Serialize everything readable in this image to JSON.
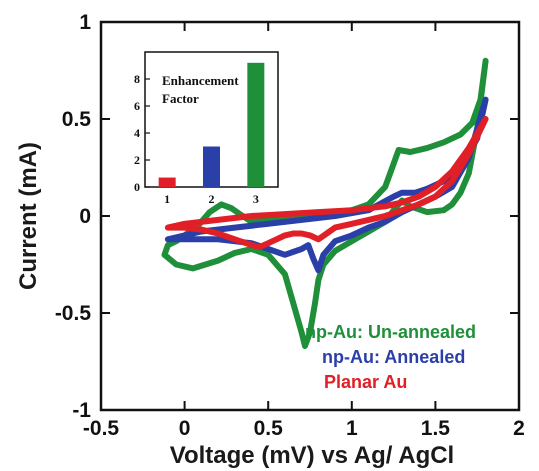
{
  "chart_data": [
    {
      "type": "line",
      "title": "",
      "xlabel": "Voltage (mV) vs Ag/ AgCl",
      "ylabel": "Current (mA)",
      "xlim": [
        -0.5,
        2
      ],
      "ylim": [
        -1,
        1
      ],
      "x_ticks": [
        "-0.5",
        "0",
        "0.5",
        "1",
        "1.5",
        "2"
      ],
      "y_ticks": [
        "1",
        "0.5",
        "0",
        "-0.5",
        "-1"
      ],
      "grid": false,
      "legend_position": "bottom-right",
      "series": [
        {
          "name": "np-Au: Un-annealed",
          "color": "#1f8f3a",
          "x": [
            -0.12,
            -0.05,
            0.05,
            0.2,
            0.3,
            0.4,
            0.5,
            0.6,
            0.65,
            0.7,
            0.72,
            0.75,
            0.78,
            0.8,
            0.83,
            0.9,
            1.0,
            1.1,
            1.2,
            1.25,
            1.3,
            1.35,
            1.45,
            1.55,
            1.6,
            1.65,
            1.7,
            1.75,
            1.8,
            1.77,
            1.72,
            1.65,
            1.55,
            1.45,
            1.35,
            1.28,
            1.2,
            1.1,
            1.0,
            0.9,
            0.8,
            0.7,
            0.6,
            0.5,
            0.4,
            0.33,
            0.28,
            0.22,
            0.15,
            0.08,
            0.0,
            -0.05,
            -0.1,
            -0.12
          ],
          "y": [
            -0.2,
            -0.25,
            -0.27,
            -0.23,
            -0.19,
            -0.17,
            -0.2,
            -0.3,
            -0.45,
            -0.6,
            -0.67,
            -0.6,
            -0.45,
            -0.33,
            -0.25,
            -0.18,
            -0.13,
            -0.08,
            -0.03,
            0.03,
            0.08,
            0.05,
            0.02,
            0.03,
            0.06,
            0.12,
            0.22,
            0.45,
            0.8,
            0.6,
            0.48,
            0.42,
            0.38,
            0.35,
            0.33,
            0.34,
            0.15,
            0.06,
            0.03,
            0.02,
            0.01,
            0.0,
            -0.01,
            -0.02,
            -0.03,
            0.01,
            0.04,
            0.06,
            0.02,
            -0.05,
            -0.1,
            -0.13,
            -0.15,
            -0.2
          ]
        },
        {
          "name": "np-Au: Annealed",
          "color": "#2b3fa8",
          "x": [
            -0.1,
            0.0,
            0.2,
            0.4,
            0.5,
            0.6,
            0.7,
            0.74,
            0.77,
            0.8,
            0.83,
            0.9,
            1.0,
            1.1,
            1.2,
            1.3,
            1.4,
            1.5,
            1.6,
            1.7,
            1.8,
            1.75,
            1.65,
            1.55,
            1.45,
            1.38,
            1.3,
            1.25,
            1.1,
            0.9,
            0.7,
            0.5,
            0.3,
            0.1,
            -0.1
          ],
          "y": [
            -0.12,
            -0.12,
            -0.12,
            -0.14,
            -0.17,
            -0.2,
            -0.17,
            -0.15,
            -0.22,
            -0.28,
            -0.2,
            -0.13,
            -0.1,
            -0.06,
            -0.03,
            0.02,
            0.06,
            0.1,
            0.15,
            0.3,
            0.6,
            0.4,
            0.25,
            0.18,
            0.14,
            0.12,
            0.12,
            0.1,
            0.03,
            0.0,
            -0.02,
            -0.04,
            -0.06,
            -0.08,
            -0.12
          ]
        },
        {
          "name": "Planar Au",
          "color": "#e01f26",
          "x": [
            -0.1,
            0.0,
            0.1,
            0.2,
            0.3,
            0.4,
            0.45,
            0.5,
            0.55,
            0.6,
            0.65,
            0.7,
            0.75,
            0.8,
            0.85,
            0.9,
            1.0,
            1.1,
            1.2,
            1.3,
            1.4,
            1.5,
            1.6,
            1.7,
            1.8,
            1.7,
            1.6,
            1.5,
            1.4,
            1.3,
            1.2,
            1.1,
            1.0,
            0.8,
            0.6,
            0.4,
            0.2,
            0.0,
            -0.1
          ],
          "y": [
            -0.06,
            -0.06,
            -0.07,
            -0.09,
            -0.12,
            -0.15,
            -0.16,
            -0.14,
            -0.12,
            -0.1,
            -0.09,
            -0.09,
            -0.1,
            -0.12,
            -0.09,
            -0.06,
            -0.04,
            -0.02,
            0.0,
            0.03,
            0.06,
            0.1,
            0.18,
            0.32,
            0.5,
            0.35,
            0.23,
            0.15,
            0.1,
            0.07,
            0.05,
            0.04,
            0.03,
            0.02,
            0.01,
            0.0,
            -0.02,
            -0.04,
            -0.06
          ]
        }
      ]
    },
    {
      "type": "bar",
      "title": "",
      "annotation": [
        "Enhancement",
        "Factor"
      ],
      "categories": [
        "1",
        "2",
        "3"
      ],
      "values": [
        0.7,
        3.0,
        9.2
      ],
      "colors": [
        "#e01f26",
        "#2b3fa8",
        "#1f8f3a"
      ],
      "ylim": [
        0,
        10
      ],
      "y_ticks": [
        "0",
        "2",
        "4",
        "6",
        "8"
      ],
      "grid": false
    }
  ]
}
